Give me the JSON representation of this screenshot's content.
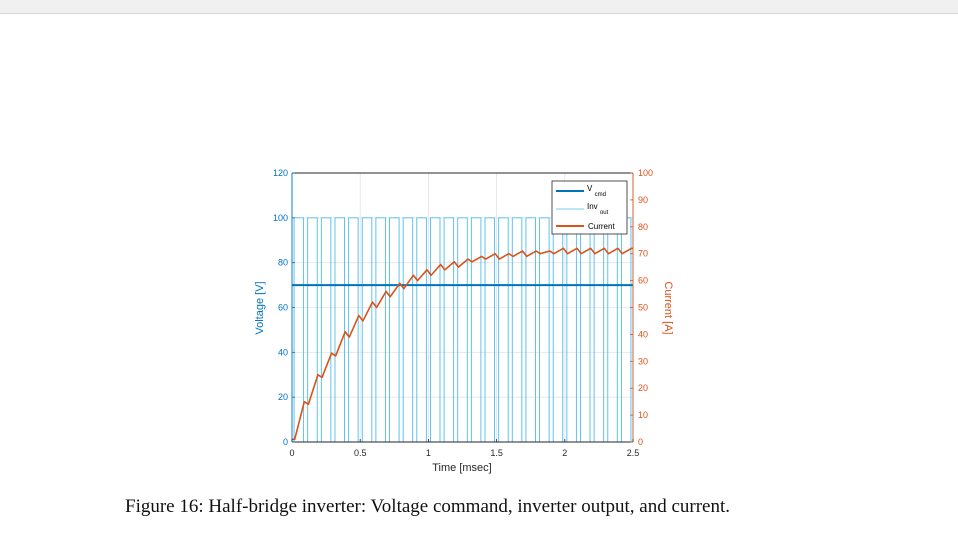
{
  "chart_data": {
    "type": "line",
    "xlabel": "Time [msec]",
    "ylabel_left": "Voltage [V]",
    "ylabel_right": "Current [A]",
    "xlim": [
      0,
      2.5
    ],
    "ylim_left": [
      0,
      120
    ],
    "ylim_right": [
      0,
      100
    ],
    "xticks": [
      "0",
      "0.5",
      "1",
      "1.5",
      "2",
      "2.5"
    ],
    "yticks_left": [
      "0",
      "20",
      "40",
      "60",
      "80",
      "100",
      "120"
    ],
    "yticks_right": [
      "0",
      "10",
      "20",
      "30",
      "40",
      "50",
      "60",
      "70",
      "80",
      "90",
      "100"
    ],
    "grid": true,
    "legend_position": "top-right",
    "colors": {
      "left_axis": "#0072bd",
      "right_axis": "#d95319",
      "vcmd": "#0072bd",
      "inv": "#4dbeee",
      "current": "#d95319"
    },
    "series": [
      {
        "name": "V",
        "name_sub": "cmd",
        "axis": "left",
        "x": [
          0,
          2.5
        ],
        "values": [
          70,
          70
        ]
      },
      {
        "name": "Inv",
        "name_sub": "out",
        "axis": "left",
        "period": 0.1,
        "high": 100,
        "low": 0,
        "duty_cycle": 0.7,
        "x_start": 0,
        "x_end": 2.5
      },
      {
        "name": "Current",
        "axis": "right",
        "x": [
          0,
          0.02,
          0.09,
          0.12,
          0.19,
          0.22,
          0.29,
          0.32,
          0.39,
          0.42,
          0.49,
          0.52,
          0.59,
          0.62,
          0.69,
          0.72,
          0.79,
          0.82,
          0.89,
          0.92,
          0.99,
          1.02,
          1.09,
          1.12,
          1.19,
          1.22,
          1.29,
          1.32,
          1.39,
          1.42,
          1.49,
          1.52,
          1.59,
          1.62,
          1.69,
          1.72,
          1.79,
          1.82,
          1.89,
          1.92,
          1.99,
          2.02,
          2.09,
          2.12,
          2.19,
          2.22,
          2.29,
          2.32,
          2.39,
          2.42,
          2.49,
          2.5
        ],
        "values": [
          1,
          1,
          15,
          14,
          25,
          24,
          33,
          32,
          41,
          39,
          47,
          45,
          52,
          50,
          56,
          54,
          59,
          57,
          62,
          60,
          64,
          62,
          66,
          64,
          67,
          65,
          68,
          67,
          69,
          68,
          70,
          68,
          70,
          69,
          71,
          69,
          71,
          70,
          71,
          70,
          72,
          70,
          72,
          70,
          72,
          70,
          72,
          70,
          72,
          70,
          72,
          72
        ]
      }
    ]
  },
  "caption": "Figure 16: Half-bridge inverter: Voltage command, inverter output, and current."
}
